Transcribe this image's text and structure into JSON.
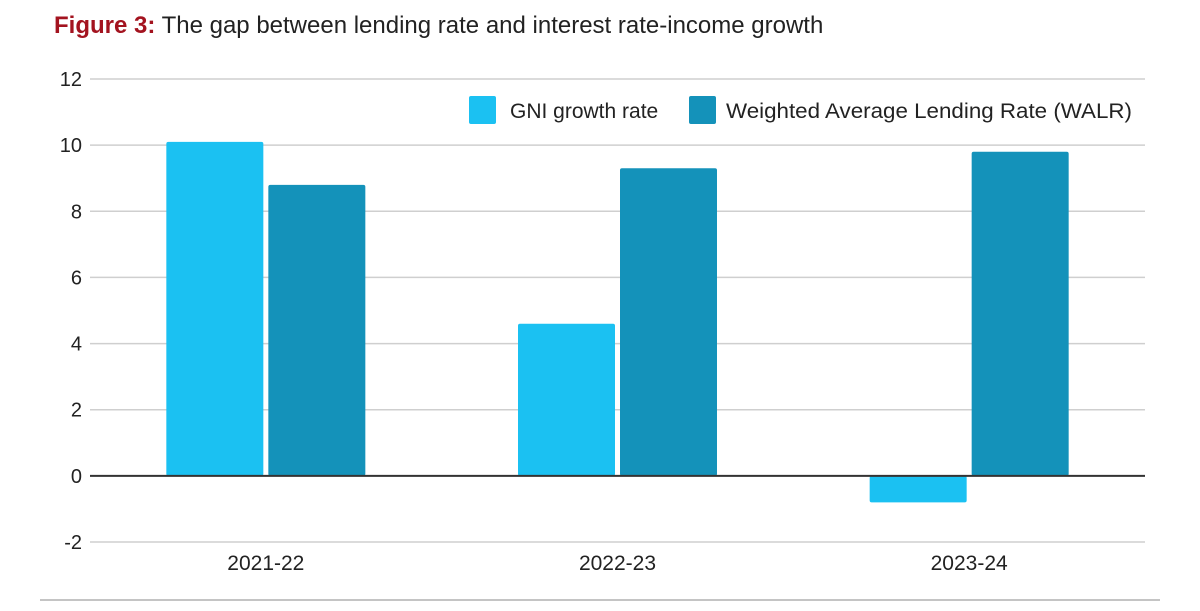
{
  "figure": {
    "label": "Figure 3:",
    "title": "The gap between lending rate and interest rate-income growth"
  },
  "chart_data": {
    "type": "bar",
    "categories": [
      "2021-22",
      "2022-23",
      "2023-24"
    ],
    "series": [
      {
        "name": "GNI growth rate",
        "values": [
          10.1,
          4.6,
          -0.8
        ],
        "color": "#1bc1f2"
      },
      {
        "name": "Weighted Average Lending Rate (WALR)",
        "values": [
          8.8,
          9.3,
          9.8
        ],
        "color": "#1492ba"
      }
    ],
    "yticks": [
      "12",
      "10",
      "8",
      "6",
      "4",
      "2",
      "0",
      "-2"
    ],
    "ylim": [
      -2,
      12
    ],
    "grid": true,
    "legend_position": "top-right"
  }
}
